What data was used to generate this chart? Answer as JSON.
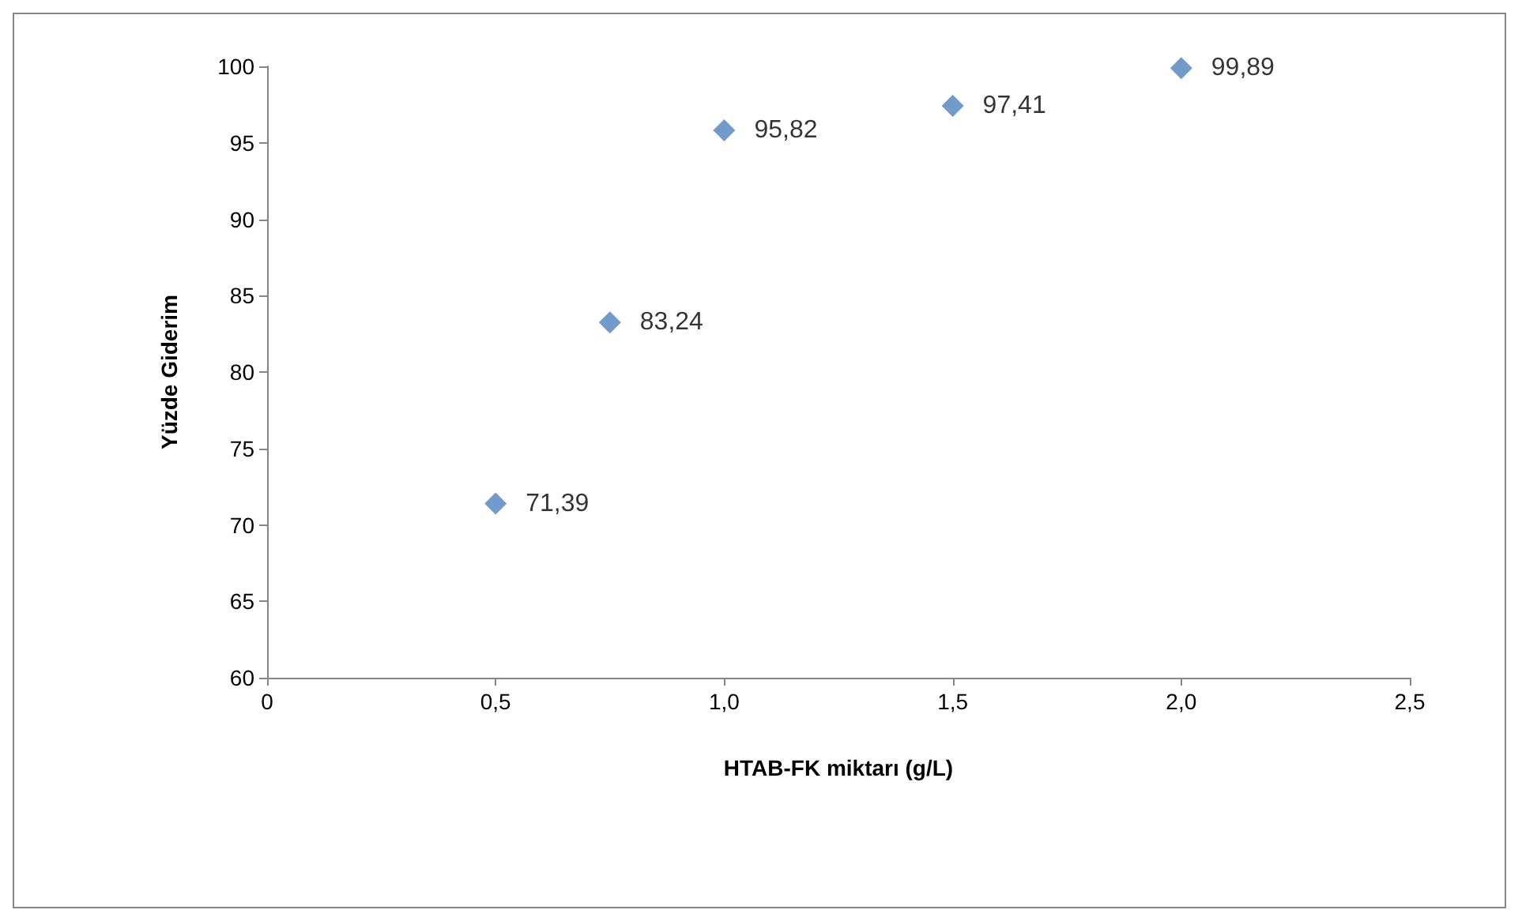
{
  "chart_data": {
    "type": "scatter",
    "xlabel": "HTAB-FK miktarı (g/L)",
    "ylabel": "Yüzde Giderim",
    "x": [
      0.5,
      0.75,
      1.0,
      1.5,
      2.0
    ],
    "values": [
      71.39,
      83.24,
      95.82,
      97.41,
      99.89
    ],
    "value_labels": [
      "71,39",
      "83,24",
      "95,82",
      "97,41",
      "99,89"
    ],
    "color": "#4f81bd",
    "marker": "diamond",
    "grid": false,
    "xlim": [
      0,
      2.5
    ],
    "xticks": [
      0,
      {
        "value": 0.5,
        "label": "0,5"
      },
      {
        "value": 1.0,
        "label": "1,0"
      },
      {
        "value": 1.5,
        "label": "1,5"
      },
      {
        "value": 2.0,
        "label": "2,0"
      },
      {
        "value": 2.5,
        "label": "2,5"
      }
    ],
    "ylim": [
      60,
      100
    ],
    "yticks": [
      60,
      65,
      70,
      75,
      80,
      85,
      90,
      95,
      100
    ]
  }
}
